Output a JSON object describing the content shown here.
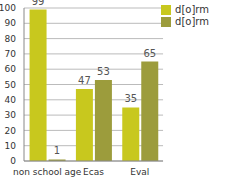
{
  "chart_data": {
    "type": "bar",
    "categories": [
      "non school age",
      "Ecas",
      "Eval"
    ],
    "series": [
      {
        "name": "d[o]rm",
        "color": "#c8c81e",
        "values": [
          99,
          47,
          35
        ]
      },
      {
        "name": "d[o]rm",
        "color": "#9c9c3c",
        "values": [
          1,
          53,
          65
        ]
      }
    ],
    "ylim": [
      0,
      100
    ],
    "yticks": [
      0,
      10,
      20,
      30,
      40,
      50,
      60,
      70,
      80,
      90,
      100
    ],
    "grid": true,
    "legend": "top-right",
    "data_labels": true
  }
}
